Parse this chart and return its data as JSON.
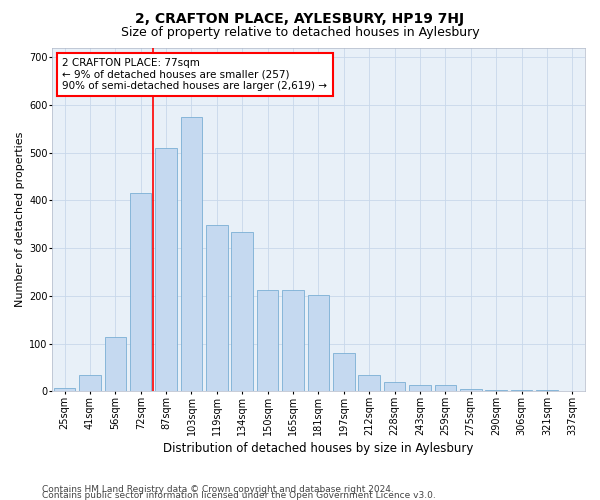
{
  "title1": "2, CRAFTON PLACE, AYLESBURY, HP19 7HJ",
  "title2": "Size of property relative to detached houses in Aylesbury",
  "xlabel": "Distribution of detached houses by size in Aylesbury",
  "ylabel": "Number of detached properties",
  "categories": [
    "25sqm",
    "41sqm",
    "56sqm",
    "72sqm",
    "87sqm",
    "103sqm",
    "119sqm",
    "134sqm",
    "150sqm",
    "165sqm",
    "181sqm",
    "197sqm",
    "212sqm",
    "228sqm",
    "243sqm",
    "259sqm",
    "275sqm",
    "290sqm",
    "306sqm",
    "321sqm",
    "337sqm"
  ],
  "values": [
    8,
    35,
    113,
    415,
    510,
    575,
    348,
    333,
    213,
    213,
    202,
    80,
    35,
    20,
    13,
    13,
    5,
    2,
    2,
    2,
    1
  ],
  "bar_color": "#c5d9f0",
  "bar_edge_color": "#7bafd4",
  "annotation_line1": "2 CRAFTON PLACE: 77sqm",
  "annotation_line2": "← 9% of detached houses are smaller (257)",
  "annotation_line3": "90% of semi-detached houses are larger (2,619) →",
  "annotation_box_edge_color": "red",
  "vline_color": "red",
  "vline_x_index": 3.5,
  "ylim": [
    0,
    720
  ],
  "yticks": [
    0,
    100,
    200,
    300,
    400,
    500,
    600,
    700
  ],
  "grid_color": "#c8d8ea",
  "background_color": "#e8f0f8",
  "footnote1": "Contains HM Land Registry data © Crown copyright and database right 2024.",
  "footnote2": "Contains public sector information licensed under the Open Government Licence v3.0.",
  "title1_fontsize": 10,
  "title2_fontsize": 9,
  "xlabel_fontsize": 8.5,
  "ylabel_fontsize": 8,
  "tick_fontsize": 7,
  "annotation_fontsize": 7.5,
  "footnote_fontsize": 6.5
}
